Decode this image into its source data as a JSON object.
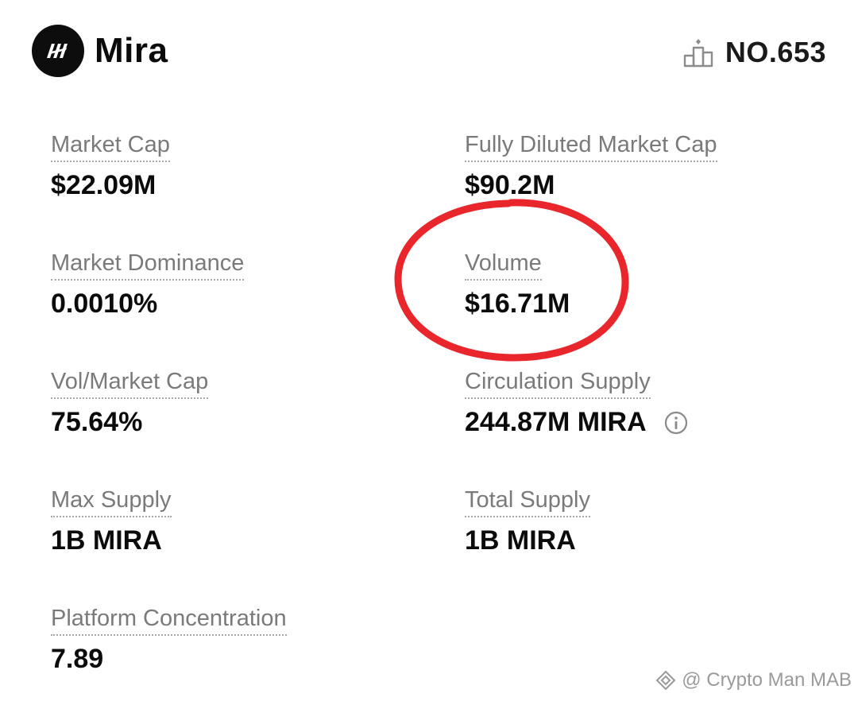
{
  "header": {
    "coin_name": "Mira",
    "rank_label": "NO.653",
    "logo_icon": "mira-logo-icon",
    "rank_icon": "podium-icon"
  },
  "stats": {
    "market_cap": {
      "label": "Market Cap",
      "value": "$22.09M"
    },
    "fully_diluted_market_cap": {
      "label": "Fully Diluted Market Cap",
      "value": "$90.2M"
    },
    "market_dominance": {
      "label": "Market Dominance",
      "value": "0.0010%"
    },
    "volume": {
      "label": "Volume",
      "value": "$16.71M"
    },
    "vol_market_cap": {
      "label": "Vol/Market Cap",
      "value": "75.64%"
    },
    "circulation_supply": {
      "label": "Circulation Supply",
      "value": "244.87M MIRA"
    },
    "max_supply": {
      "label": "Max Supply",
      "value": "1B MIRA"
    },
    "total_supply": {
      "label": "Total Supply",
      "value": "1B MIRA"
    },
    "platform_concentration": {
      "label": "Platform Concentration",
      "value": "7.89"
    }
  },
  "annotation": {
    "color": "#e8262b",
    "target": "volume"
  },
  "watermark": {
    "text": "@ Crypto Man MAB",
    "icon": "binance-square-icon"
  },
  "colors": {
    "label": "#7a7a7a",
    "value": "#0b0b0b",
    "logo_bg": "#0d0d0d"
  }
}
